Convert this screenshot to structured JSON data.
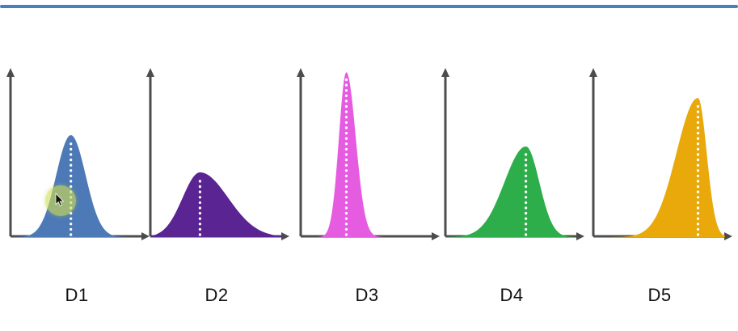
{
  "page": {
    "background": "#ffffff",
    "top_border_color": "#4a7ebc",
    "axis_color": "#4c4c4c",
    "mean_line_color": "#ffffff",
    "cursor_highlight_color": "#d0de54"
  },
  "chart_data": [
    {
      "type": "area",
      "name": "D1",
      "color": "#4d79b7",
      "mean_rel": 0.45,
      "height_rel": 0.63,
      "sigma_left_rel": 0.11,
      "sigma_right_rel": 0.11,
      "spread": "medium",
      "skew": "symmetric",
      "mean_marker": "white dotted vertical line at peak",
      "axes": "unlabeled x and y arrows"
    },
    {
      "type": "area",
      "name": "D2",
      "color": "#5a2492",
      "mean_rel": 0.37,
      "height_rel": 0.4,
      "sigma_left_rel": 0.13,
      "sigma_right_rel": 0.21,
      "spread": "wide",
      "skew": "slight-right",
      "mean_marker": "white dotted vertical line at peak",
      "axes": "unlabeled x and y arrows"
    },
    {
      "type": "area",
      "name": "D3",
      "color": "#e55ce0",
      "mean_rel": 0.34,
      "height_rel": 1.02,
      "sigma_left_rel": 0.055,
      "sigma_right_rel": 0.07,
      "spread": "narrow",
      "skew": "symmetric",
      "mean_marker": "white dotted vertical line at peak",
      "axes": "unlabeled x and y arrows"
    },
    {
      "type": "area",
      "name": "D4",
      "color": "#2dae4a",
      "mean_rel": 0.6,
      "height_rel": 0.56,
      "sigma_left_rel": 0.16,
      "sigma_right_rel": 0.1,
      "spread": "medium",
      "skew": "left",
      "mean_marker": "white dotted vertical line at peak",
      "axes": "unlabeled x and y arrows"
    },
    {
      "type": "area",
      "name": "D5",
      "color": "#e9a90b",
      "mean_rel": 0.78,
      "height_rel": 0.86,
      "sigma_left_rel": 0.16,
      "sigma_right_rel": 0.065,
      "spread": "medium",
      "skew": "left",
      "mean_marker": "white dotted vertical line at peak",
      "axes": "unlabeled x and y arrows"
    }
  ]
}
